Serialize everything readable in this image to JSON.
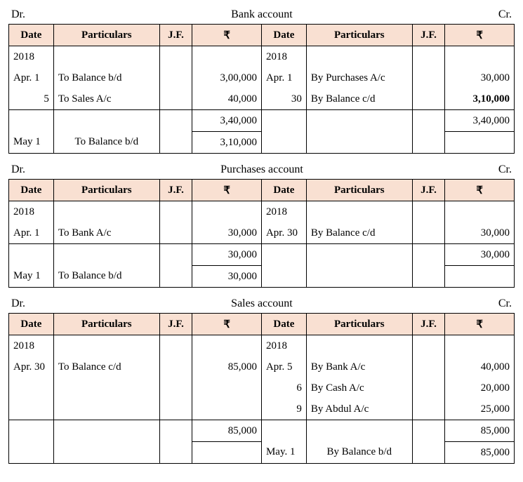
{
  "labels": {
    "dr": "Dr.",
    "cr": "Cr."
  },
  "headers": {
    "date": "Date",
    "particulars": "Particulars",
    "jf": "J.F.",
    "rupee": "₹"
  },
  "bank": {
    "title": "Bank account",
    "dr": {
      "year": "2018",
      "r1": {
        "date": "Apr. 1",
        "part": "To Balance b/d",
        "amt": "3,00,000"
      },
      "r2": {
        "date": "5",
        "part": "To Sales A/c",
        "amt": "40,000"
      },
      "total": "3,40,000",
      "r3": {
        "date": "May 1",
        "part": "To Balance b/d",
        "amt": "3,10,000"
      }
    },
    "cr": {
      "year": "2018",
      "r1": {
        "date": "Apr. 1",
        "part": "By Purchases A/c",
        "amt": "30,000"
      },
      "r2": {
        "date": "30",
        "part": "By Balance c/d",
        "amt": "3,10,000"
      },
      "total": "3,40,000"
    }
  },
  "purchases": {
    "title": "Purchases account",
    "dr": {
      "year": "2018",
      "r1": {
        "date": "Apr. 1",
        "part": "To Bank A/c",
        "amt": "30,000"
      },
      "total": "30,000",
      "r2": {
        "date": "May 1",
        "part": "To Balance b/d",
        "amt": "30,000"
      }
    },
    "cr": {
      "year": "2018",
      "r1": {
        "date": "Apr. 30",
        "part": "By Balance c/d",
        "amt": "30,000"
      },
      "total": "30,000"
    }
  },
  "sales": {
    "title": "Sales account",
    "dr": {
      "year": "2018",
      "r1": {
        "date": "Apr. 30",
        "part": "To Balance c/d",
        "amt": "85,000"
      },
      "total": "85,000"
    },
    "cr": {
      "year": "2018",
      "r1": {
        "date": "Apr. 5",
        "part": "By Bank A/c",
        "amt": "40,000"
      },
      "r2": {
        "date": "6",
        "part": "By Cash A/c",
        "amt": "20,000"
      },
      "r3": {
        "date": "9",
        "part": "By Abdul A/c",
        "amt": "25,000"
      },
      "total": "85,000",
      "r4": {
        "date": "May. 1",
        "part": "By Balance b/d",
        "amt": "85,000"
      }
    }
  }
}
